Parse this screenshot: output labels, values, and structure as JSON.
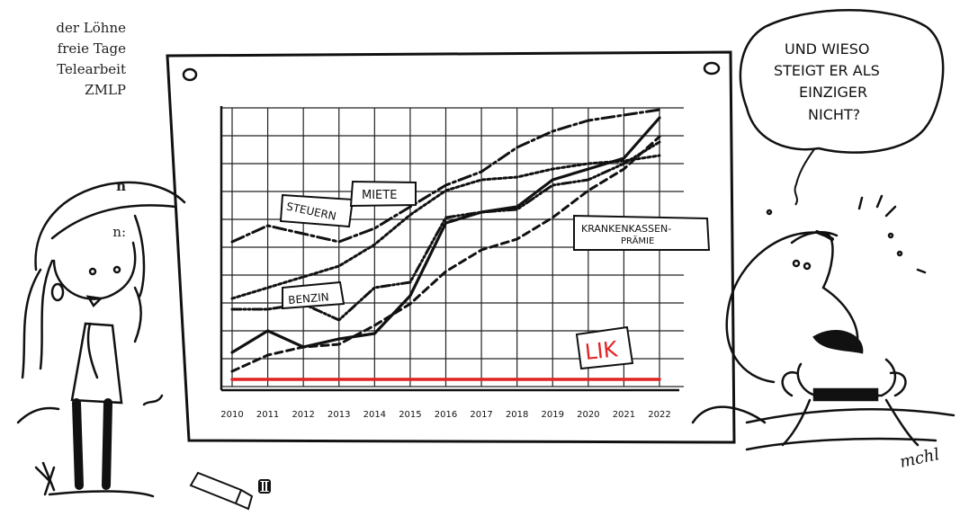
{
  "side_text": {
    "lines": [
      "der Löhne",
      "freie Tage",
      "Telearbeit",
      "ZMLP",
      "n",
      "n:"
    ]
  },
  "chart_data": {
    "type": "line",
    "x": [
      2010,
      2011,
      2012,
      2013,
      2014,
      2015,
      2016,
      2017,
      2018,
      2019,
      2020,
      2021,
      2022
    ],
    "x_ticks": [
      "2010",
      "2011",
      "2012",
      "2013",
      "2014",
      "2015",
      "2016",
      "2017",
      "2018",
      "2019",
      "2020",
      "2021",
      "2022"
    ],
    "ylim": [
      0,
      100
    ],
    "grid": true,
    "series": [
      {
        "name": "STEUERN",
        "values": [
          51,
          57,
          54,
          51,
          56,
          64,
          72,
          77,
          86,
          92,
          96,
          98,
          100
        ],
        "color": "#111111"
      },
      {
        "name": "MIETE",
        "values": [
          30,
          34,
          38,
          42,
          50,
          61,
          70,
          74,
          75,
          78,
          80,
          81,
          83
        ],
        "color": "#111111"
      },
      {
        "name": "BENZIN",
        "values": [
          26,
          26,
          28,
          22,
          34,
          36,
          60,
          62,
          63,
          72,
          74,
          80,
          88
        ],
        "color": "#111111"
      },
      {
        "name": "KRANKENKASSEN-PRÄMIE",
        "values": [
          3,
          9,
          12,
          13,
          20,
          28,
          40,
          48,
          52,
          60,
          70,
          78,
          90
        ],
        "color": "#111111"
      },
      {
        "name": "",
        "values": [
          10,
          18,
          12,
          15,
          17,
          31,
          58,
          62,
          64,
          74,
          78,
          82,
          97
        ],
        "color": "#111111"
      },
      {
        "name": "LIK",
        "values": [
          0,
          0,
          0,
          0,
          0,
          0,
          0,
          0,
          0,
          0,
          0,
          0,
          0
        ],
        "color": "#e02424"
      }
    ]
  },
  "labels": {
    "steuern": "STEUERN",
    "miete": "MIETE",
    "benzin": "BENZIN",
    "kk1": "KRANKENKASSEN-",
    "kk2": "PRÄMIE",
    "lik": "LIK"
  },
  "speech": {
    "lines": [
      "UND WIESO",
      "STEIGT ER ALS",
      "EINZIGER",
      "NICHT?"
    ]
  },
  "signature": "mchl",
  "colors": {
    "lik_red": "#e02424",
    "ink": "#111111"
  }
}
